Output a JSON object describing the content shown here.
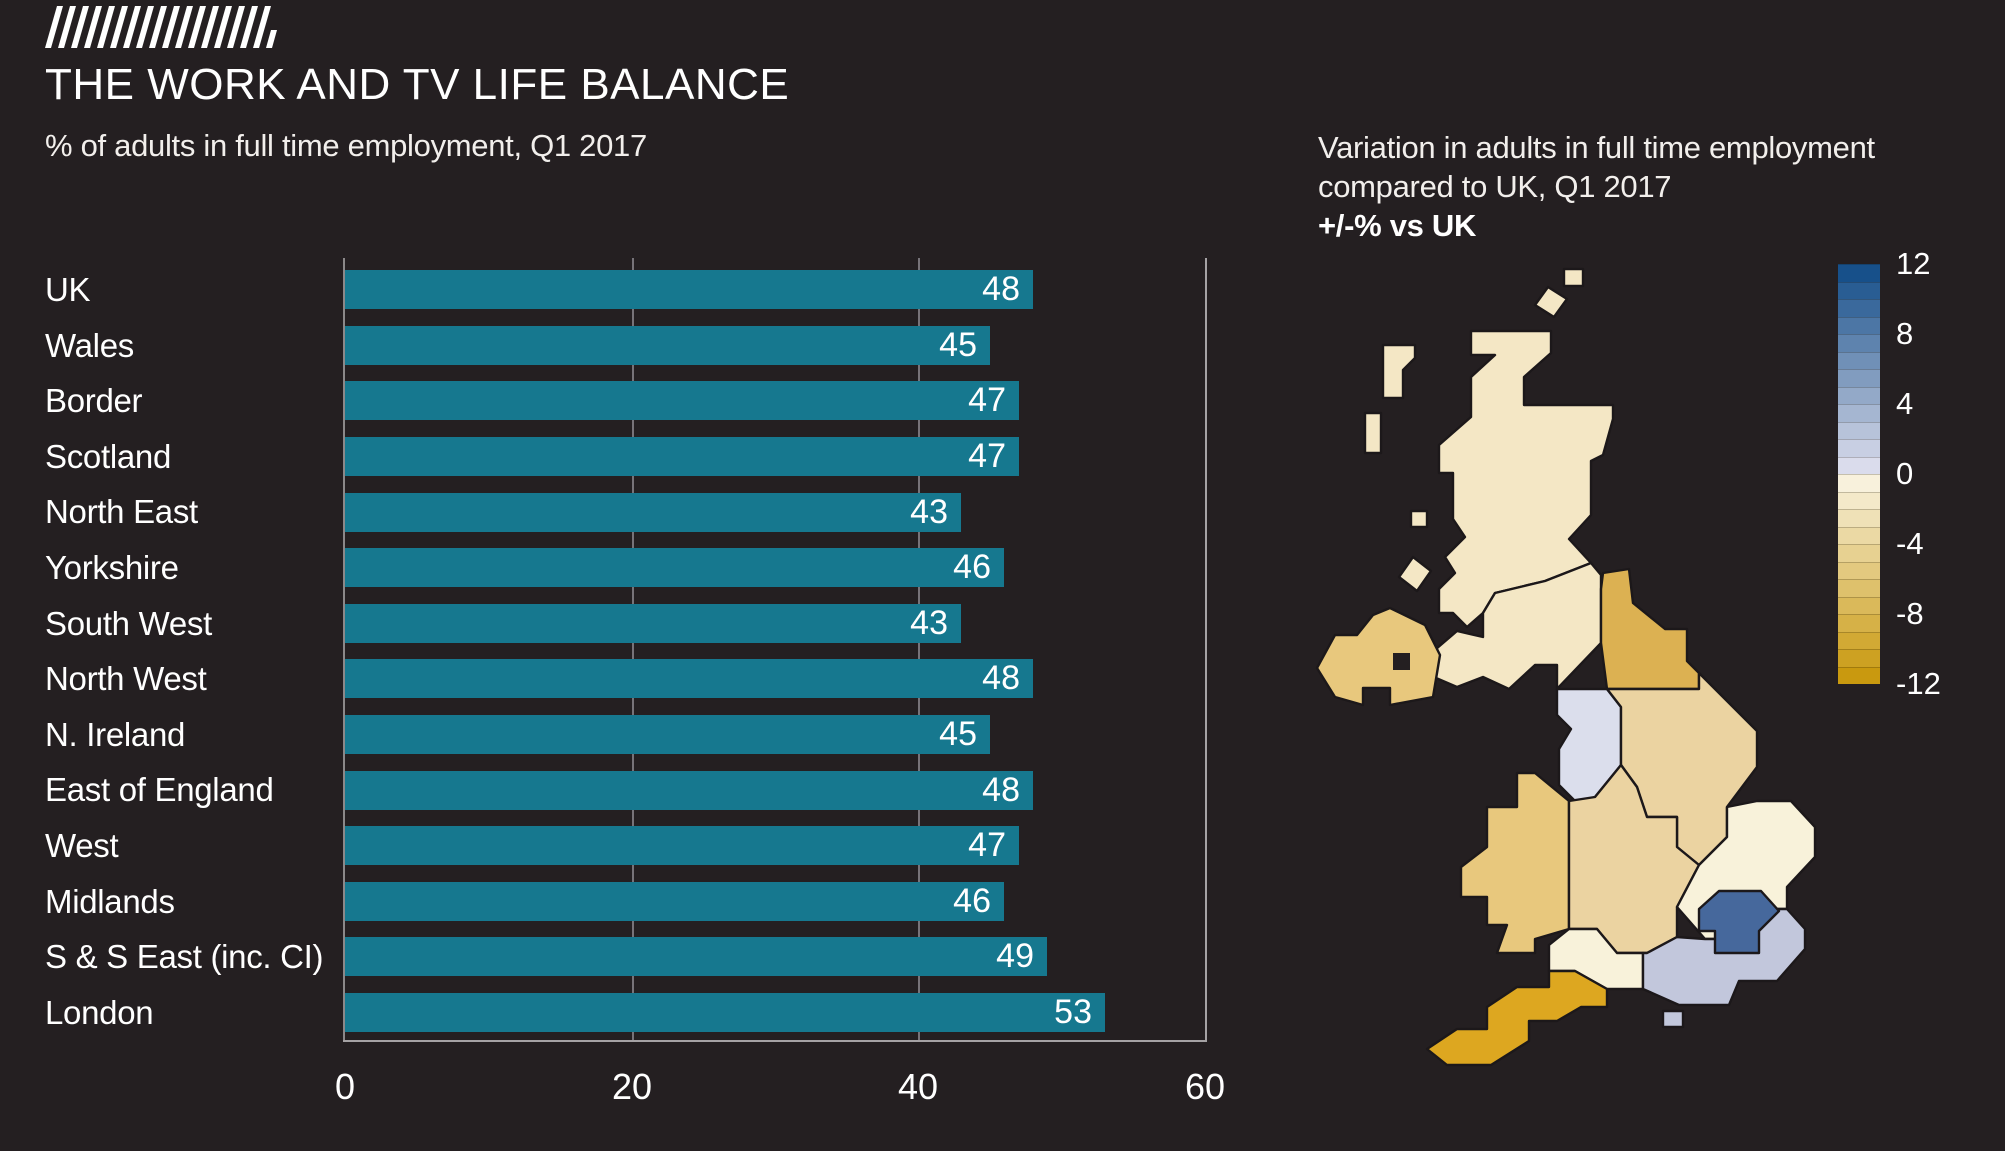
{
  "header": {
    "title": "THE WORK AND TV LIFE BALANCE",
    "subtitle": "% of adults in full time employment, Q1 2017"
  },
  "map": {
    "title_line1": "Variation in adults in full time employment",
    "title_line2": "compared to UK, Q1 2017",
    "unit_label": "+/-% vs UK",
    "regions": [
      {
        "id": "scotland",
        "name": "Scotland",
        "color": "#f4e7c5"
      },
      {
        "id": "shetland-square",
        "name": "Shetland Isles",
        "color": "#f4e7c5"
      },
      {
        "id": "shetland-diamond",
        "name": "Orkney Isles",
        "color": "#f4e7c5"
      },
      {
        "id": "hebrides-north",
        "name": "Outer Hebrides north",
        "color": "#f4e7c5"
      },
      {
        "id": "hebrides-mid",
        "name": "Outer Hebrides mid",
        "color": "#f4e7c5"
      },
      {
        "id": "hebrides-south",
        "name": "Inner Hebrides",
        "color": "#f4e7c5"
      },
      {
        "id": "arran",
        "name": "Arran",
        "color": "#f4e7c5"
      },
      {
        "id": "border",
        "name": "Border",
        "color": "#f4e7c5"
      },
      {
        "id": "northeast",
        "name": "North East",
        "color": "#dcb152"
      },
      {
        "id": "nireland",
        "name": "N. Ireland",
        "color": "#e8c87d"
      },
      {
        "id": "lough-neagh",
        "name": "Lough Neagh cutout",
        "color": "#241f21"
      },
      {
        "id": "northwest",
        "name": "North West",
        "color": "#dbdeec"
      },
      {
        "id": "yorkshire",
        "name": "Yorkshire",
        "color": "#ebd3a1"
      },
      {
        "id": "wales",
        "name": "Wales",
        "color": "#e8c87d"
      },
      {
        "id": "midlands",
        "name": "Midlands",
        "color": "#ebd3a1"
      },
      {
        "id": "eastengland",
        "name": "East of England",
        "color": "#f8f2da"
      },
      {
        "id": "west",
        "name": "West",
        "color": "#f8f2da"
      },
      {
        "id": "ssEast",
        "name": "S & S East (inc. CI)",
        "color": "#c2c7dc"
      },
      {
        "id": "isleofwight",
        "name": "Isle of Wight",
        "color": "#c2c7dc"
      },
      {
        "id": "london",
        "name": "London",
        "color": "#46689c"
      },
      {
        "id": "southwest",
        "name": "South West",
        "color": "#dda720"
      }
    ]
  },
  "legend": {
    "labels": [
      "12",
      "8",
      "4",
      "0",
      "-4",
      "-8",
      "-12"
    ],
    "positive_top_color": "#17508a",
    "positive_bottom_color": "#dadcec",
    "negative_top_color": "#f8f1dc",
    "negative_bottom_color": "#c9990f"
  },
  "chart_data": {
    "type": "bar",
    "orientation": "horizontal",
    "title": "THE WORK AND TV LIFE BALANCE",
    "subtitle": "% of adults in full time employment, Q1 2017",
    "categories": [
      "UK",
      "Wales",
      "Border",
      "Scotland",
      "North East",
      "Yorkshire",
      "South West",
      "North West",
      "N. Ireland",
      "East of England",
      "West",
      "Midlands",
      "S & S East (inc. CI)",
      "London"
    ],
    "values": [
      48,
      45,
      47,
      47,
      43,
      46,
      43,
      48,
      45,
      48,
      47,
      46,
      49,
      53
    ],
    "xlim": [
      0,
      60
    ],
    "xticks": [
      0,
      20,
      40,
      60
    ],
    "bar_color": "#16788f",
    "grid": true,
    "value_labels_shown": true
  },
  "colors": {
    "background": "#241f21",
    "text": "#ffffff",
    "bar": "#16788f",
    "gridline": "#777379",
    "frame": "#a5a2a4"
  }
}
